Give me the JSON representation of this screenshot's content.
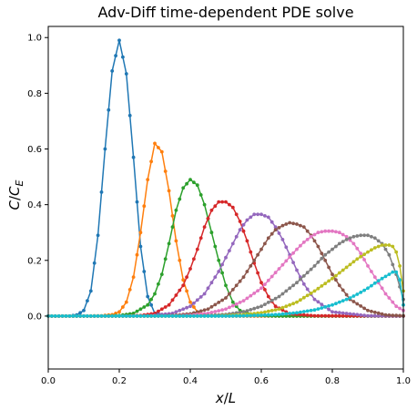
{
  "chart_data": {
    "type": "line",
    "title": "Adv-Diff time-dependent PDE solve",
    "xlabel": "x/L",
    "ylabel": "C/C_E",
    "xlim": [
      0.0,
      1.0
    ],
    "ylim": [
      -0.19,
      1.04
    ],
    "xticks": [
      "0.0",
      "0.2",
      "0.4",
      "0.6",
      "0.8",
      "1.0"
    ],
    "yticks": [
      "0.0",
      "0.2",
      "0.4",
      "0.6",
      "0.8",
      "1.0"
    ],
    "grid": false,
    "markers": "dots",
    "series": [
      {
        "color": "#1f77b4",
        "x": [
          0.0,
          0.02,
          0.04,
          0.06,
          0.08,
          0.1,
          0.12,
          0.14,
          0.16,
          0.18,
          0.2,
          0.22,
          0.24,
          0.26,
          0.28,
          0.3,
          0.35,
          0.4,
          0.6,
          0.8,
          1.0
        ],
        "y": [
          0,
          0,
          0,
          0,
          0.004,
          0.02,
          0.09,
          0.29,
          0.6,
          0.88,
          0.99,
          0.87,
          0.57,
          0.25,
          0.07,
          0.01,
          0,
          0,
          0,
          0,
          0
        ]
      },
      {
        "color": "#ff7f0e",
        "x": [
          0.0,
          0.1,
          0.15,
          0.18,
          0.2,
          0.22,
          0.24,
          0.26,
          0.28,
          0.3,
          0.32,
          0.34,
          0.36,
          0.38,
          0.4,
          0.42,
          0.44,
          0.46,
          0.5,
          0.6,
          1.0
        ],
        "y": [
          0,
          0,
          0.001,
          0.005,
          0.015,
          0.05,
          0.14,
          0.3,
          0.49,
          0.62,
          0.59,
          0.45,
          0.27,
          0.13,
          0.05,
          0.015,
          0.004,
          0.001,
          0,
          0,
          0
        ]
      },
      {
        "color": "#2ca02c",
        "x": [
          0.0,
          0.15,
          0.2,
          0.24,
          0.28,
          0.3,
          0.32,
          0.34,
          0.36,
          0.38,
          0.4,
          0.42,
          0.44,
          0.46,
          0.48,
          0.5,
          0.52,
          0.54,
          0.58,
          0.65,
          1.0
        ],
        "y": [
          0,
          0,
          0.002,
          0.01,
          0.04,
          0.08,
          0.15,
          0.26,
          0.38,
          0.46,
          0.49,
          0.47,
          0.4,
          0.3,
          0.2,
          0.11,
          0.05,
          0.02,
          0.003,
          0,
          0
        ]
      },
      {
        "color": "#d62728",
        "x": [
          0.0,
          0.2,
          0.26,
          0.3,
          0.34,
          0.38,
          0.4,
          0.42,
          0.44,
          0.46,
          0.48,
          0.5,
          0.52,
          0.54,
          0.56,
          0.58,
          0.6,
          0.62,
          0.64,
          0.68,
          0.75,
          1.0
        ],
        "y": [
          0,
          0,
          0.002,
          0.01,
          0.04,
          0.11,
          0.17,
          0.24,
          0.32,
          0.38,
          0.41,
          0.41,
          0.39,
          0.34,
          0.27,
          0.19,
          0.12,
          0.07,
          0.035,
          0.008,
          0.001,
          0
        ]
      },
      {
        "color": "#9467bd",
        "x": [
          0.0,
          0.25,
          0.3,
          0.35,
          0.4,
          0.44,
          0.48,
          0.5,
          0.52,
          0.54,
          0.56,
          0.58,
          0.6,
          0.62,
          0.64,
          0.66,
          0.68,
          0.7,
          0.72,
          0.75,
          0.8,
          0.9,
          1.0
        ],
        "y": [
          0,
          0,
          0.002,
          0.01,
          0.035,
          0.08,
          0.16,
          0.21,
          0.26,
          0.31,
          0.345,
          0.365,
          0.365,
          0.355,
          0.32,
          0.275,
          0.22,
          0.165,
          0.115,
          0.06,
          0.015,
          0.001,
          0
        ]
      },
      {
        "color": "#8c564b",
        "x": [
          0.0,
          0.3,
          0.35,
          0.4,
          0.45,
          0.5,
          0.55,
          0.58,
          0.6,
          0.62,
          0.64,
          0.66,
          0.68,
          0.7,
          0.72,
          0.74,
          0.76,
          0.78,
          0.8,
          0.82,
          0.85,
          0.9,
          0.95,
          1.0
        ],
        "y": [
          0,
          0,
          0.002,
          0.008,
          0.025,
          0.065,
          0.14,
          0.2,
          0.24,
          0.28,
          0.31,
          0.325,
          0.335,
          0.33,
          0.32,
          0.29,
          0.25,
          0.2,
          0.15,
          0.11,
          0.06,
          0.02,
          0.004,
          0.001
        ]
      },
      {
        "color": "#e377c2",
        "x": [
          0.0,
          0.35,
          0.4,
          0.45,
          0.5,
          0.55,
          0.6,
          0.65,
          0.7,
          0.72,
          0.74,
          0.76,
          0.78,
          0.8,
          0.82,
          0.84,
          0.86,
          0.88,
          0.9,
          0.92,
          0.95,
          0.98,
          1.0
        ],
        "y": [
          0,
          0,
          0.003,
          0.01,
          0.025,
          0.055,
          0.1,
          0.17,
          0.24,
          0.265,
          0.285,
          0.3,
          0.305,
          0.305,
          0.3,
          0.285,
          0.26,
          0.225,
          0.18,
          0.14,
          0.08,
          0.035,
          0.02
        ]
      },
      {
        "color": "#7f7f7f",
        "x": [
          0.0,
          0.4,
          0.45,
          0.5,
          0.55,
          0.6,
          0.65,
          0.7,
          0.75,
          0.78,
          0.8,
          0.82,
          0.84,
          0.86,
          0.88,
          0.9,
          0.92,
          0.94,
          0.96,
          0.98,
          1.0
        ],
        "y": [
          0,
          0,
          0.002,
          0.006,
          0.015,
          0.035,
          0.07,
          0.12,
          0.18,
          0.22,
          0.24,
          0.26,
          0.275,
          0.285,
          0.29,
          0.29,
          0.28,
          0.26,
          0.22,
          0.15,
          0.06
        ]
      },
      {
        "color": "#bcbd22",
        "x": [
          0.0,
          0.45,
          0.5,
          0.55,
          0.6,
          0.65,
          0.7,
          0.75,
          0.8,
          0.84,
          0.87,
          0.9,
          0.92,
          0.94,
          0.96,
          0.97,
          0.98,
          0.99,
          1.0
        ],
        "y": [
          0,
          0,
          0.002,
          0.005,
          0.012,
          0.025,
          0.05,
          0.09,
          0.135,
          0.175,
          0.205,
          0.23,
          0.245,
          0.255,
          0.255,
          0.25,
          0.23,
          0.18,
          0.09
        ]
      },
      {
        "color": "#17becf",
        "x": [
          0.0,
          0.5,
          0.55,
          0.6,
          0.65,
          0.7,
          0.75,
          0.8,
          0.85,
          0.88,
          0.9,
          0.92,
          0.94,
          0.96,
          0.97,
          0.98,
          0.99,
          1.0
        ],
        "y": [
          0,
          0,
          0.001,
          0.003,
          0.006,
          0.012,
          0.022,
          0.04,
          0.065,
          0.085,
          0.1,
          0.118,
          0.135,
          0.15,
          0.158,
          0.158,
          0.13,
          0.04
        ]
      }
    ]
  }
}
